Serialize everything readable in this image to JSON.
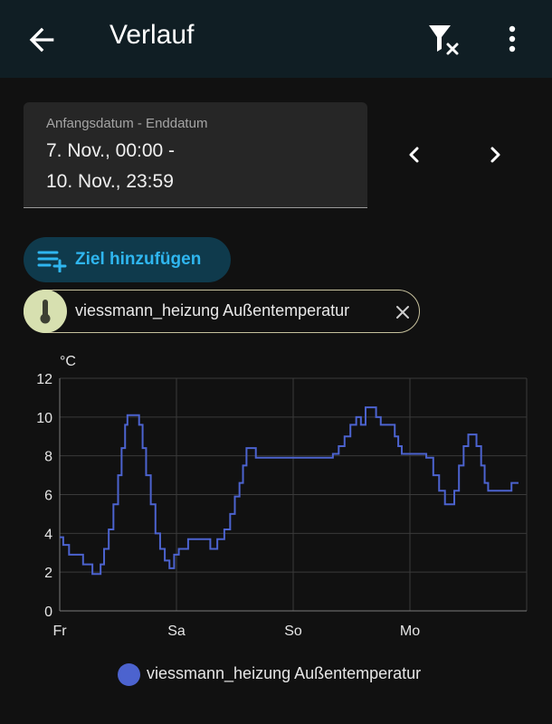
{
  "header": {
    "title": "Verlauf",
    "back_icon": "arrow-left-icon",
    "filter_icon": "filter-remove-icon",
    "menu_icon": "dots-vertical-icon"
  },
  "date_range": {
    "caption": "Anfangsdatum - Enddatum",
    "line1": "7. Nov., 00:00 -",
    "line2": "10. Nov., 23:59",
    "prev_icon": "chevron-left-icon",
    "next_icon": "chevron-right-icon"
  },
  "add_target": {
    "label": "Ziel hinzufügen",
    "icon": "playlist-plus-icon",
    "color": "#2fb6f0"
  },
  "entity_chip": {
    "label": "viessmann_heizung Außentemperatur",
    "icon": "thermometer-icon",
    "close_icon": "close-icon"
  },
  "chart_data": {
    "type": "line",
    "ylabel": "°C",
    "ylim": [
      0,
      12
    ],
    "yticks": [
      0,
      2,
      4,
      6,
      8,
      10,
      12
    ],
    "xlim": [
      0,
      4
    ],
    "xticks": [
      {
        "x": 0,
        "label": "Fr"
      },
      {
        "x": 1,
        "label": "Sa"
      },
      {
        "x": 2,
        "label": "So"
      },
      {
        "x": 3,
        "label": "Mo"
      }
    ],
    "grid": true,
    "step": true,
    "series": [
      {
        "name": "viessmann_heizung Außentemperatur",
        "color": "#4c63cf",
        "points": [
          [
            0.0,
            3.8
          ],
          [
            0.03,
            3.4
          ],
          [
            0.08,
            2.9
          ],
          [
            0.2,
            2.4
          ],
          [
            0.28,
            1.9
          ],
          [
            0.35,
            2.4
          ],
          [
            0.38,
            3.2
          ],
          [
            0.42,
            4.2
          ],
          [
            0.46,
            5.5
          ],
          [
            0.5,
            7.0
          ],
          [
            0.53,
            8.4
          ],
          [
            0.56,
            9.6
          ],
          [
            0.58,
            10.1
          ],
          [
            0.68,
            9.6
          ],
          [
            0.71,
            8.4
          ],
          [
            0.74,
            7.0
          ],
          [
            0.78,
            5.5
          ],
          [
            0.82,
            4.0
          ],
          [
            0.86,
            3.2
          ],
          [
            0.9,
            2.6
          ],
          [
            0.94,
            2.2
          ],
          [
            0.98,
            2.9
          ],
          [
            1.02,
            3.2
          ],
          [
            1.1,
            3.7
          ],
          [
            1.29,
            3.2
          ],
          [
            1.35,
            3.7
          ],
          [
            1.41,
            4.2
          ],
          [
            1.46,
            5.0
          ],
          [
            1.5,
            5.9
          ],
          [
            1.54,
            6.6
          ],
          [
            1.57,
            7.5
          ],
          [
            1.6,
            8.4
          ],
          [
            1.68,
            7.9
          ],
          [
            2.34,
            8.1
          ],
          [
            2.39,
            8.5
          ],
          [
            2.44,
            9.0
          ],
          [
            2.49,
            9.6
          ],
          [
            2.54,
            10.0
          ],
          [
            2.58,
            9.6
          ],
          [
            2.62,
            10.5
          ],
          [
            2.71,
            10.0
          ],
          [
            2.75,
            9.6
          ],
          [
            2.87,
            9.0
          ],
          [
            2.9,
            8.5
          ],
          [
            2.93,
            8.1
          ],
          [
            3.14,
            7.9
          ],
          [
            3.2,
            7.0
          ],
          [
            3.25,
            6.2
          ],
          [
            3.3,
            5.5
          ],
          [
            3.38,
            6.2
          ],
          [
            3.42,
            7.5
          ],
          [
            3.46,
            8.5
          ],
          [
            3.5,
            9.1
          ],
          [
            3.57,
            8.5
          ],
          [
            3.61,
            7.5
          ],
          [
            3.64,
            6.6
          ],
          [
            3.67,
            6.2
          ],
          [
            3.87,
            6.6
          ],
          [
            3.93,
            6.6
          ]
        ]
      }
    ],
    "legend": "bottom"
  }
}
